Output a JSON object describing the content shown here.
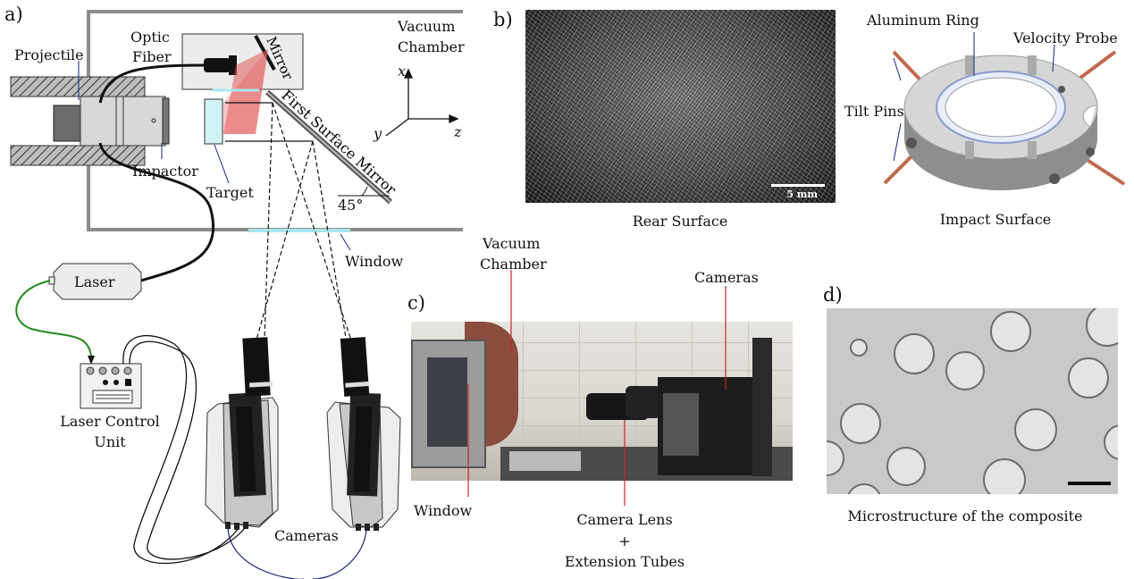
{
  "panels": {
    "a": "a)",
    "b": "b)",
    "c": "c)",
    "d": "d)"
  },
  "panel_a": {
    "vacuum_chamber": [
      "Vacuum",
      "Chamber"
    ],
    "projectile": "Projectile",
    "optic_fiber": [
      "Optic",
      "Fiber"
    ],
    "mirror": "Mirror",
    "first_surface_mirror": "First Surface Mirror",
    "angle": "45°",
    "impactor": "Impactor",
    "target": "Target",
    "window": "Window",
    "laser": "Laser",
    "laser_control_unit": [
      "Laser Control",
      "Unit"
    ],
    "cameras": "Cameras",
    "axes": {
      "x": "x",
      "y": "y",
      "z": "z"
    }
  },
  "panel_b": {
    "rear_surface": "Rear Surface",
    "scale": "5 mm",
    "aluminum_ring": "Aluminum Ring",
    "velocity_probe": "Velocity Probe",
    "tilt_pins": "Tilt Pins",
    "impact_surface": "Impact Surface"
  },
  "panel_c": {
    "vacuum_chamber": [
      "Vacuum",
      "Chamber"
    ],
    "cameras": "Cameras",
    "window": "Window",
    "camera_lens": [
      "Camera Lens",
      "+",
      "Extension Tubes"
    ]
  },
  "panel_d": {
    "caption": "Microstructure of the composite"
  },
  "colors": {
    "laser_red": "#e35b5b",
    "fiber_green": "#1f8a1f",
    "cable_navy": "#1a237e",
    "window_cyan": "#a8e6ee",
    "leader_red": "#c62828"
  }
}
